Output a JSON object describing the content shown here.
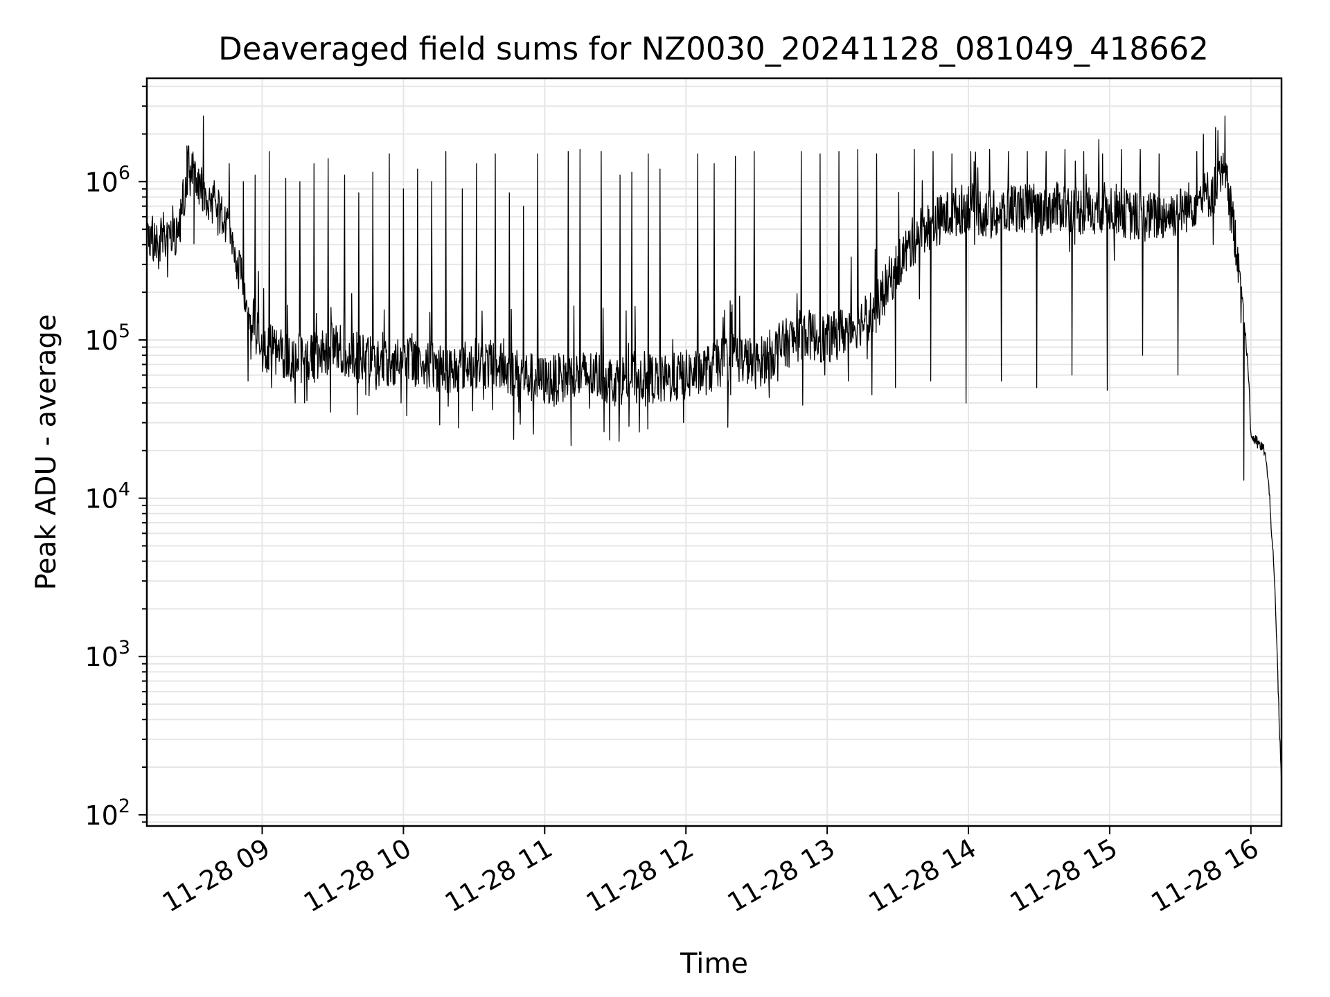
{
  "chart_data": {
    "type": "line",
    "title": "Deaveraged field sums for NZ0030_20241128_081049_418662",
    "xlabel": "Time",
    "ylabel": "Peak ADU - average",
    "x_range": [
      "2024-11-28 08:11",
      "2024-11-28 16:13"
    ],
    "y_scale": "log",
    "ylim": [
      85,
      4500000
    ],
    "grid": true,
    "legend": "none",
    "x_ticks": [
      "11-28 09",
      "11-28 10",
      "11-28 11",
      "11-28 12",
      "11-28 13",
      "11-28 14",
      "11-28 15",
      "11-28 16"
    ],
    "y_ticks": [
      {
        "base": "10",
        "exp": "2",
        "value": 100
      },
      {
        "base": "10",
        "exp": "3",
        "value": 1000
      },
      {
        "base": "10",
        "exp": "4",
        "value": 10000
      },
      {
        "base": "10",
        "exp": "5",
        "value": 100000
      },
      {
        "base": "10",
        "exp": "6",
        "value": 1000000
      }
    ],
    "line_color": "#000000",
    "grid_color": "#e6e6e6",
    "series": [
      {
        "x": [
          "08:11",
          "08:15",
          "08:20",
          "08:25",
          "08:28",
          "08:31",
          "08:34",
          "08:37",
          "08:40",
          "08:45",
          "08:50",
          "08:55",
          "09:00",
          "09:10",
          "09:20",
          "09:30",
          "09:40",
          "09:50",
          "10:00",
          "10:10",
          "10:20",
          "10:30",
          "10:40",
          "10:50",
          "11:00",
          "11:10",
          "11:20",
          "11:30",
          "11:40",
          "11:50",
          "12:00",
          "12:10",
          "12:20",
          "12:30",
          "12:40",
          "12:50",
          "13:00",
          "13:10",
          "13:20",
          "13:30",
          "13:40",
          "13:50",
          "14:00",
          "14:10",
          "14:20",
          "14:30",
          "14:40",
          "14:50",
          "15:00",
          "15:10",
          "15:20",
          "15:30",
          "15:40",
          "15:45",
          "15:48",
          "15:50",
          "15:52",
          "15:55",
          "15:57",
          "15:59",
          "16:00",
          "16:03",
          "16:06",
          "16:08",
          "16:10",
          "16:11",
          "16:12",
          "16:13"
        ],
        "y": [
          500000,
          380000,
          500000,
          470000,
          1200000,
          1100000,
          900000,
          800000,
          700000,
          500000,
          300000,
          150000,
          90000,
          80000,
          75000,
          90000,
          80000,
          70000,
          75000,
          70000,
          65000,
          72000,
          68000,
          60000,
          55000,
          58000,
          60000,
          55000,
          60000,
          55000,
          60000,
          65000,
          80000,
          70000,
          90000,
          110000,
          100000,
          120000,
          150000,
          300000,
          500000,
          600000,
          700000,
          600000,
          700000,
          650000,
          700000,
          650000,
          700000,
          600000,
          600000,
          650000,
          800000,
          900000,
          1100000,
          900000,
          600000,
          300000,
          150000,
          60000,
          25000,
          22000,
          20000,
          10000,
          3000,
          1200,
          400,
          150
        ]
      }
    ],
    "peaks": {
      "x": [
        "08:31",
        "08:36",
        "08:47",
        "08:53",
        "08:58",
        "09:04",
        "09:11",
        "09:17",
        "09:23",
        "09:29",
        "09:36",
        "09:42",
        "09:48",
        "09:55",
        "10:01",
        "10:07",
        "10:13",
        "10:19",
        "10:26",
        "10:32",
        "10:40",
        "10:46",
        "10:52",
        "10:58",
        "11:05",
        "11:11",
        "11:16",
        "11:20",
        "11:25",
        "11:33",
        "11:38",
        "11:45",
        "11:50",
        "12:06",
        "12:13",
        "12:22",
        "12:30",
        "12:40",
        "12:50",
        "12:58",
        "13:06",
        "13:14",
        "13:22",
        "13:30",
        "13:38",
        "13:46",
        "13:54",
        "14:02",
        "14:10",
        "14:18",
        "14:26",
        "14:34",
        "14:42",
        "14:50",
        "14:58",
        "15:06",
        "15:14",
        "15:22",
        "15:30",
        "15:38",
        "15:46",
        "15:50"
      ],
      "y": [
        1500000,
        2600000,
        1300000,
        1000000,
        1100000,
        1550000,
        1050000,
        1000000,
        1300000,
        1400000,
        1100000,
        850000,
        1150000,
        1500000,
        900000,
        1200000,
        1000000,
        1550000,
        900000,
        1300000,
        1500000,
        850000,
        700000,
        1500000,
        1200000,
        1550000,
        1600000,
        1500000,
        1550000,
        1100000,
        1150000,
        1500000,
        1200000,
        1500000,
        1300000,
        1450000,
        1550000,
        1550000,
        1550000,
        1500000,
        1550000,
        1600000,
        1500000,
        1550000,
        1600000,
        1550000,
        1500000,
        1550000,
        1600000,
        1550000,
        1550000,
        1550000,
        1600000,
        1550000,
        1500000,
        1600000,
        1600000,
        1500000,
        1550000,
        1550000,
        2200000,
        2600000
      ]
    },
    "dips": {
      "x": [
        "08:20",
        "08:55",
        "09:05",
        "09:15",
        "09:30",
        "09:45",
        "10:00",
        "10:20",
        "10:35",
        "10:50",
        "11:05",
        "11:20",
        "11:40",
        "12:00",
        "12:20",
        "12:40",
        "13:00",
        "13:10",
        "13:20",
        "13:30",
        "13:45",
        "14:00",
        "14:15",
        "14:30",
        "14:45",
        "15:00",
        "15:15",
        "15:30",
        "15:45",
        "15:58"
      ],
      "y": [
        250000,
        55000,
        50000,
        40000,
        35000,
        45000,
        40000,
        38000,
        42000,
        35000,
        38000,
        37000,
        40000,
        30000,
        45000,
        55000,
        60000,
        55000,
        45000,
        50000,
        55000,
        40000,
        55000,
        50000,
        60000,
        48000,
        80000,
        60000,
        400000,
        13000
      ]
    }
  }
}
